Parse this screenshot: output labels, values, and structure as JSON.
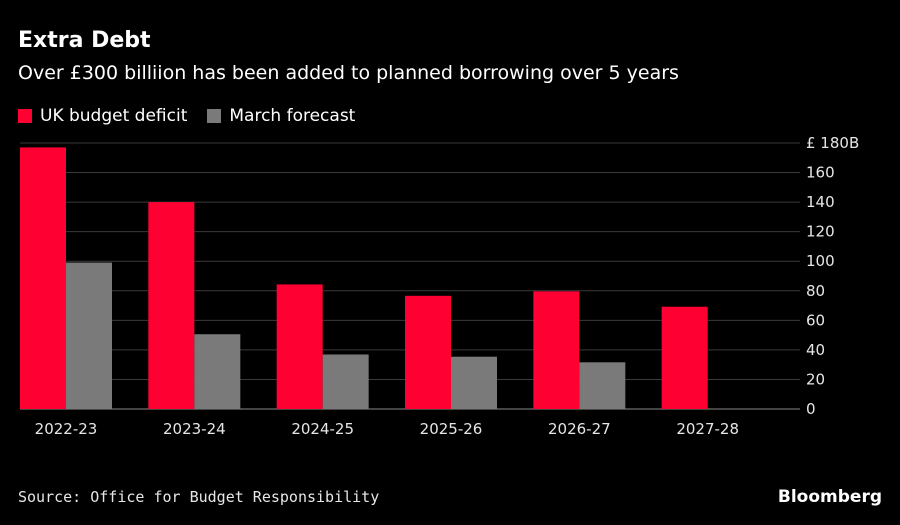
{
  "header": {
    "title": "Extra Debt",
    "subtitle": "Over £300 billiion has been added to planned borrowing over 5 years"
  },
  "footer": {
    "source": "Source: Office for Budget Responsibility",
    "brand": "Bloomberg"
  },
  "colors": {
    "deficit": "#ff0033",
    "forecast": "#7a7a7a",
    "background": "#000000",
    "gridline": "#3a3a3a"
  },
  "chart_data": {
    "type": "bar",
    "categories": [
      "2022-23",
      "2023-24",
      "2024-25",
      "2025-26",
      "2026-27",
      "2027-28"
    ],
    "series": [
      {
        "name": "UK budget deficit",
        "values": [
          177.0,
          140.0,
          84.3,
          76.6,
          79.6,
          69.2
        ]
      },
      {
        "name": "March forecast",
        "values": [
          99.1,
          50.6,
          36.9,
          35.4,
          31.6,
          null
        ]
      }
    ],
    "ylim": [
      0,
      180
    ],
    "yticks": [
      0,
      20,
      40,
      60,
      80,
      100,
      120,
      140,
      160,
      180
    ],
    "ytick_labels": [
      "0",
      "20",
      "40",
      "60",
      "80",
      "100",
      "120",
      "140",
      "160",
      "£ 180B"
    ],
    "legend_position": "top-left",
    "y_axis_side": "right",
    "grid": true
  }
}
